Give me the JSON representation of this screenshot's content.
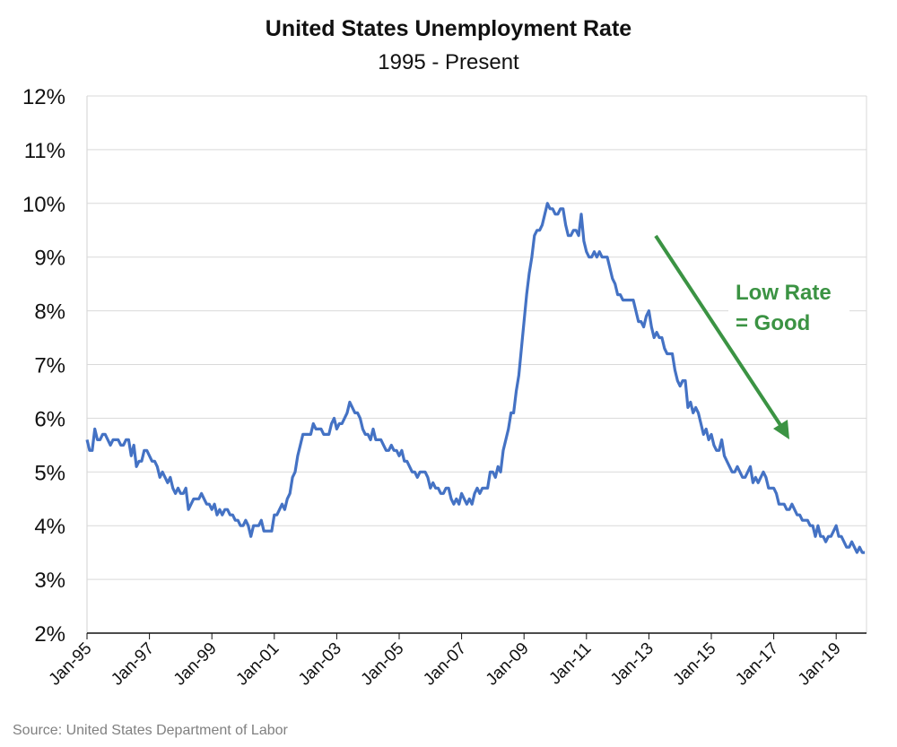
{
  "chart_data": {
    "type": "line",
    "title": "United States Unemployment Rate",
    "subtitle": "1995 - Present",
    "source": "Source: United States Department of Labor",
    "xlabel": "",
    "ylabel": "",
    "ylim": [
      2,
      12
    ],
    "y_ticks": [
      "2%",
      "3%",
      "4%",
      "5%",
      "6%",
      "7%",
      "8%",
      "9%",
      "10%",
      "11%",
      "12%"
    ],
    "x_ticks": [
      "Jan-95",
      "Jan-97",
      "Jan-99",
      "Jan-01",
      "Jan-03",
      "Jan-05",
      "Jan-07",
      "Jan-09",
      "Jan-11",
      "Jan-13",
      "Jan-15",
      "Jan-17",
      "Jan-19"
    ],
    "grid": true,
    "line_color": "#4472c4",
    "annotation_color": "#3b9343",
    "annotation": {
      "line1": "Low Rate",
      "line2": "= Good",
      "arrow": "down-right"
    },
    "frequency": "monthly",
    "series": [
      {
        "values_by_year": {
          "1995": [
            5.6,
            5.4,
            5.4,
            5.8,
            5.6,
            5.6,
            5.7,
            5.7,
            5.6,
            5.5,
            5.6,
            5.6
          ],
          "1996": [
            5.6,
            5.5,
            5.5,
            5.6,
            5.6,
            5.3,
            5.5,
            5.1,
            5.2,
            5.2,
            5.4,
            5.4
          ],
          "1997": [
            5.3,
            5.2,
            5.2,
            5.1,
            4.9,
            5.0,
            4.9,
            4.8,
            4.9,
            4.7,
            4.6,
            4.7
          ],
          "1998": [
            4.6,
            4.6,
            4.7,
            4.3,
            4.4,
            4.5,
            4.5,
            4.5,
            4.6,
            4.5,
            4.4,
            4.4
          ],
          "1999": [
            4.3,
            4.4,
            4.2,
            4.3,
            4.2,
            4.3,
            4.3,
            4.2,
            4.2,
            4.1,
            4.1,
            4.0
          ],
          "2000": [
            4.0,
            4.1,
            4.0,
            3.8,
            4.0,
            4.0,
            4.0,
            4.1,
            3.9,
            3.9,
            3.9,
            3.9
          ],
          "2001": [
            4.2,
            4.2,
            4.3,
            4.4,
            4.3,
            4.5,
            4.6,
            4.9,
            5.0,
            5.3,
            5.5,
            5.7
          ],
          "2002": [
            5.7,
            5.7,
            5.7,
            5.9,
            5.8,
            5.8,
            5.8,
            5.7,
            5.7,
            5.7,
            5.9,
            6.0
          ],
          "2003": [
            5.8,
            5.9,
            5.9,
            6.0,
            6.1,
            6.3,
            6.2,
            6.1,
            6.1,
            6.0,
            5.8,
            5.7
          ],
          "2004": [
            5.7,
            5.6,
            5.8,
            5.6,
            5.6,
            5.6,
            5.5,
            5.4,
            5.4,
            5.5,
            5.4,
            5.4
          ],
          "2005": [
            5.3,
            5.4,
            5.2,
            5.2,
            5.1,
            5.0,
            5.0,
            4.9,
            5.0,
            5.0,
            5.0,
            4.9
          ],
          "2006": [
            4.7,
            4.8,
            4.7,
            4.7,
            4.6,
            4.6,
            4.7,
            4.7,
            4.5,
            4.4,
            4.5,
            4.4
          ],
          "2007": [
            4.6,
            4.5,
            4.4,
            4.5,
            4.4,
            4.6,
            4.7,
            4.6,
            4.7,
            4.7,
            4.7,
            5.0
          ],
          "2008": [
            5.0,
            4.9,
            5.1,
            5.0,
            5.4,
            5.6,
            5.8,
            6.1,
            6.1,
            6.5,
            6.8,
            7.3
          ],
          "2009": [
            7.8,
            8.3,
            8.7,
            9.0,
            9.4,
            9.5,
            9.5,
            9.6,
            9.8,
            10.0,
            9.9,
            9.9
          ],
          "2010": [
            9.8,
            9.8,
            9.9,
            9.9,
            9.6,
            9.4,
            9.4,
            9.5,
            9.5,
            9.4,
            9.8,
            9.3
          ],
          "2011": [
            9.1,
            9.0,
            9.0,
            9.1,
            9.0,
            9.1,
            9.0,
            9.0,
            9.0,
            8.8,
            8.6,
            8.5
          ],
          "2012": [
            8.3,
            8.3,
            8.2,
            8.2,
            8.2,
            8.2,
            8.2,
            8.0,
            7.8,
            7.8,
            7.7,
            7.9
          ],
          "2013": [
            8.0,
            7.7,
            7.5,
            7.6,
            7.5,
            7.5,
            7.3,
            7.2,
            7.2,
            7.2,
            6.9,
            6.7
          ],
          "2014": [
            6.6,
            6.7,
            6.7,
            6.2,
            6.3,
            6.1,
            6.2,
            6.1,
            5.9,
            5.7,
            5.8,
            5.6
          ],
          "2015": [
            5.7,
            5.5,
            5.4,
            5.4,
            5.6,
            5.3,
            5.2,
            5.1,
            5.0,
            5.0,
            5.1,
            5.0
          ],
          "2016": [
            4.9,
            4.9,
            5.0,
            5.1,
            4.8,
            4.9,
            4.8,
            4.9,
            5.0,
            4.9,
            4.7,
            4.7
          ],
          "2017": [
            4.7,
            4.6,
            4.4,
            4.4,
            4.4,
            4.3,
            4.3,
            4.4,
            4.3,
            4.2,
            4.2,
            4.1
          ],
          "2018": [
            4.1,
            4.1,
            4.0,
            4.0,
            3.8,
            4.0,
            3.8,
            3.8,
            3.7,
            3.8,
            3.8,
            3.9
          ],
          "2019": [
            4.0,
            3.8,
            3.8,
            3.7,
            3.6,
            3.6,
            3.7,
            3.6,
            3.5,
            3.6,
            3.5,
            3.5
          ]
        }
      }
    ]
  }
}
